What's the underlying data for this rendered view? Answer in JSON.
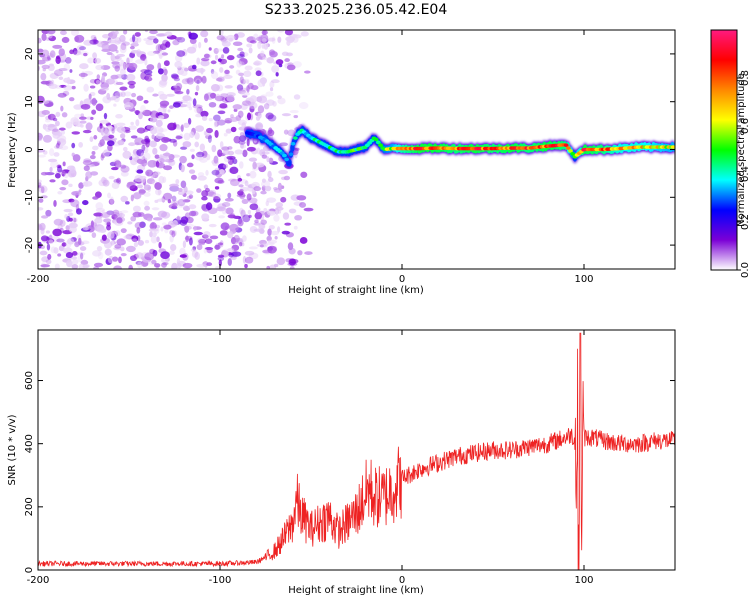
{
  "chart_data": [
    {
      "type": "heatmap",
      "title": "S233.2025.236.05.42.E04",
      "xlabel": "Height of straight line (km)",
      "ylabel": "Frequency (Hz)",
      "xlim": [
        -200,
        150
      ],
      "ylim": [
        -25,
        25
      ],
      "x_ticks": [
        -200,
        -100,
        0,
        100
      ],
      "y_ticks": [
        -20,
        -10,
        0,
        10,
        20
      ],
      "colorbar": {
        "label": "Normalized spectral amplitude",
        "range": [
          0,
          1
        ],
        "ticks": [
          "0.0",
          "0.2",
          "0.4",
          "0.6",
          "0.8"
        ],
        "tick_values": [
          0.0,
          0.2,
          0.4,
          0.6,
          0.8
        ],
        "colors": [
          "#ffffff",
          "#7b00d6",
          "#0000ff",
          "#00ffff",
          "#00ff00",
          "#ffff00",
          "#ff8800",
          "#ff0000",
          "#ff1a80"
        ]
      },
      "noise_region_x": [
        -200,
        -75
      ],
      "ridge": {
        "x": [
          -85,
          -80,
          -75,
          -70,
          -65,
          -62,
          -60,
          -58,
          -55,
          -50,
          -45,
          -40,
          -35,
          -30,
          -25,
          -20,
          -15,
          -10,
          -5,
          0,
          10,
          20,
          30,
          40,
          50,
          60,
          70,
          80,
          90,
          95,
          100,
          110,
          120,
          130,
          140,
          150
        ],
        "freq": [
          3.5,
          3.0,
          2.0,
          0.5,
          -1.0,
          -3.0,
          1.0,
          3.0,
          4.0,
          2.5,
          1.5,
          0.5,
          -0.5,
          -0.5,
          0.0,
          0.5,
          2.5,
          0.0,
          0.2,
          0.2,
          0.2,
          0.3,
          0.2,
          0.2,
          0.2,
          0.3,
          0.3,
          0.7,
          1.0,
          -1.5,
          0.0,
          0.0,
          0.2,
          0.5,
          0.5,
          0.5
        ],
        "amp": [
          0.25,
          0.28,
          0.32,
          0.35,
          0.35,
          0.3,
          0.35,
          0.4,
          0.4,
          0.42,
          0.42,
          0.45,
          0.45,
          0.5,
          0.5,
          0.5,
          0.5,
          0.55,
          0.6,
          0.75,
          0.85,
          0.85,
          0.8,
          0.85,
          0.8,
          0.85,
          0.8,
          0.85,
          0.8,
          0.5,
          0.85,
          0.8,
          0.7,
          0.7,
          0.65,
          0.6
        ]
      }
    },
    {
      "type": "line",
      "xlabel": "Height of straight line (km)",
      "ylabel": "SNR (10 * v/v)",
      "xlim": [
        -200,
        150
      ],
      "ylim": [
        0,
        760
      ],
      "x_ticks": [
        -200,
        -100,
        0,
        100
      ],
      "y_ticks": [
        0,
        200,
        400,
        600
      ],
      "color": "#ee2222",
      "series": [
        {
          "name": "SNR",
          "x": [
            -200,
            -180,
            -160,
            -140,
            -120,
            -100,
            -90,
            -80,
            -75,
            -70,
            -65,
            -60,
            -58,
            -55,
            -50,
            -45,
            -40,
            -35,
            -30,
            -25,
            -20,
            -18,
            -15,
            -10,
            -5,
            0,
            10,
            20,
            30,
            40,
            50,
            60,
            70,
            80,
            85,
            90,
            93,
            96,
            98,
            100,
            105,
            110,
            120,
            130,
            140,
            150
          ],
          "y": [
            20,
            20,
            20,
            20,
            20,
            20,
            22,
            25,
            40,
            60,
            100,
            150,
            220,
            170,
            130,
            150,
            170,
            120,
            150,
            180,
            240,
            260,
            230,
            230,
            260,
            290,
            320,
            340,
            360,
            370,
            380,
            380,
            390,
            400,
            410,
            420,
            430,
            400,
            250,
            420,
            420,
            410,
            400,
            400,
            410,
            410
          ]
        }
      ]
    }
  ]
}
